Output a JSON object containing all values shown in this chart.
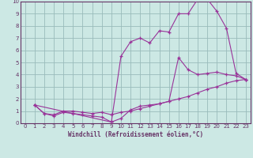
{
  "xlabel": "Windchill (Refroidissement éolien,°C)",
  "bg_color": "#cce8e4",
  "line_color": "#993399",
  "grid_color": "#99bbbb",
  "axis_color": "#663366",
  "tick_color": "#663366",
  "xlim": [
    -0.5,
    23.5
  ],
  "ylim": [
    0,
    10
  ],
  "xticks": [
    0,
    1,
    2,
    3,
    4,
    5,
    6,
    7,
    8,
    9,
    10,
    11,
    12,
    13,
    14,
    15,
    16,
    17,
    18,
    19,
    20,
    21,
    22,
    23
  ],
  "yticks": [
    0,
    1,
    2,
    3,
    4,
    5,
    6,
    7,
    8,
    9,
    10
  ],
  "line1_x": [
    1,
    2,
    3,
    4,
    5,
    6,
    7,
    8,
    9,
    10,
    11,
    12,
    13,
    14,
    15,
    16,
    17,
    18,
    19,
    20,
    21,
    22,
    23
  ],
  "line1_y": [
    1.5,
    0.8,
    0.7,
    1.0,
    1.0,
    0.9,
    0.8,
    0.9,
    0.7,
    0.9,
    1.0,
    1.2,
    1.4,
    1.6,
    1.8,
    2.0,
    2.2,
    2.5,
    2.8,
    3.0,
    3.3,
    3.5,
    3.6
  ],
  "line2_x": [
    1,
    2,
    3,
    4,
    5,
    6,
    7,
    8,
    9,
    10,
    11,
    12,
    13,
    14,
    15,
    16,
    17,
    18,
    19,
    20,
    21,
    22,
    23
  ],
  "line2_y": [
    1.5,
    0.8,
    0.6,
    0.9,
    0.8,
    0.7,
    0.6,
    0.5,
    0.1,
    0.4,
    1.1,
    1.4,
    1.5,
    1.6,
    1.8,
    5.4,
    4.4,
    4.0,
    4.1,
    4.2,
    4.0,
    3.9,
    3.6
  ],
  "line3_x": [
    1,
    9,
    10,
    11,
    12,
    13,
    14,
    15,
    16,
    17,
    18,
    19,
    20,
    21,
    22,
    23
  ],
  "line3_y": [
    1.5,
    0.1,
    5.5,
    6.7,
    7.0,
    6.6,
    7.6,
    7.5,
    9.0,
    9.0,
    10.2,
    10.2,
    9.2,
    7.8,
    4.1,
    3.6
  ]
}
